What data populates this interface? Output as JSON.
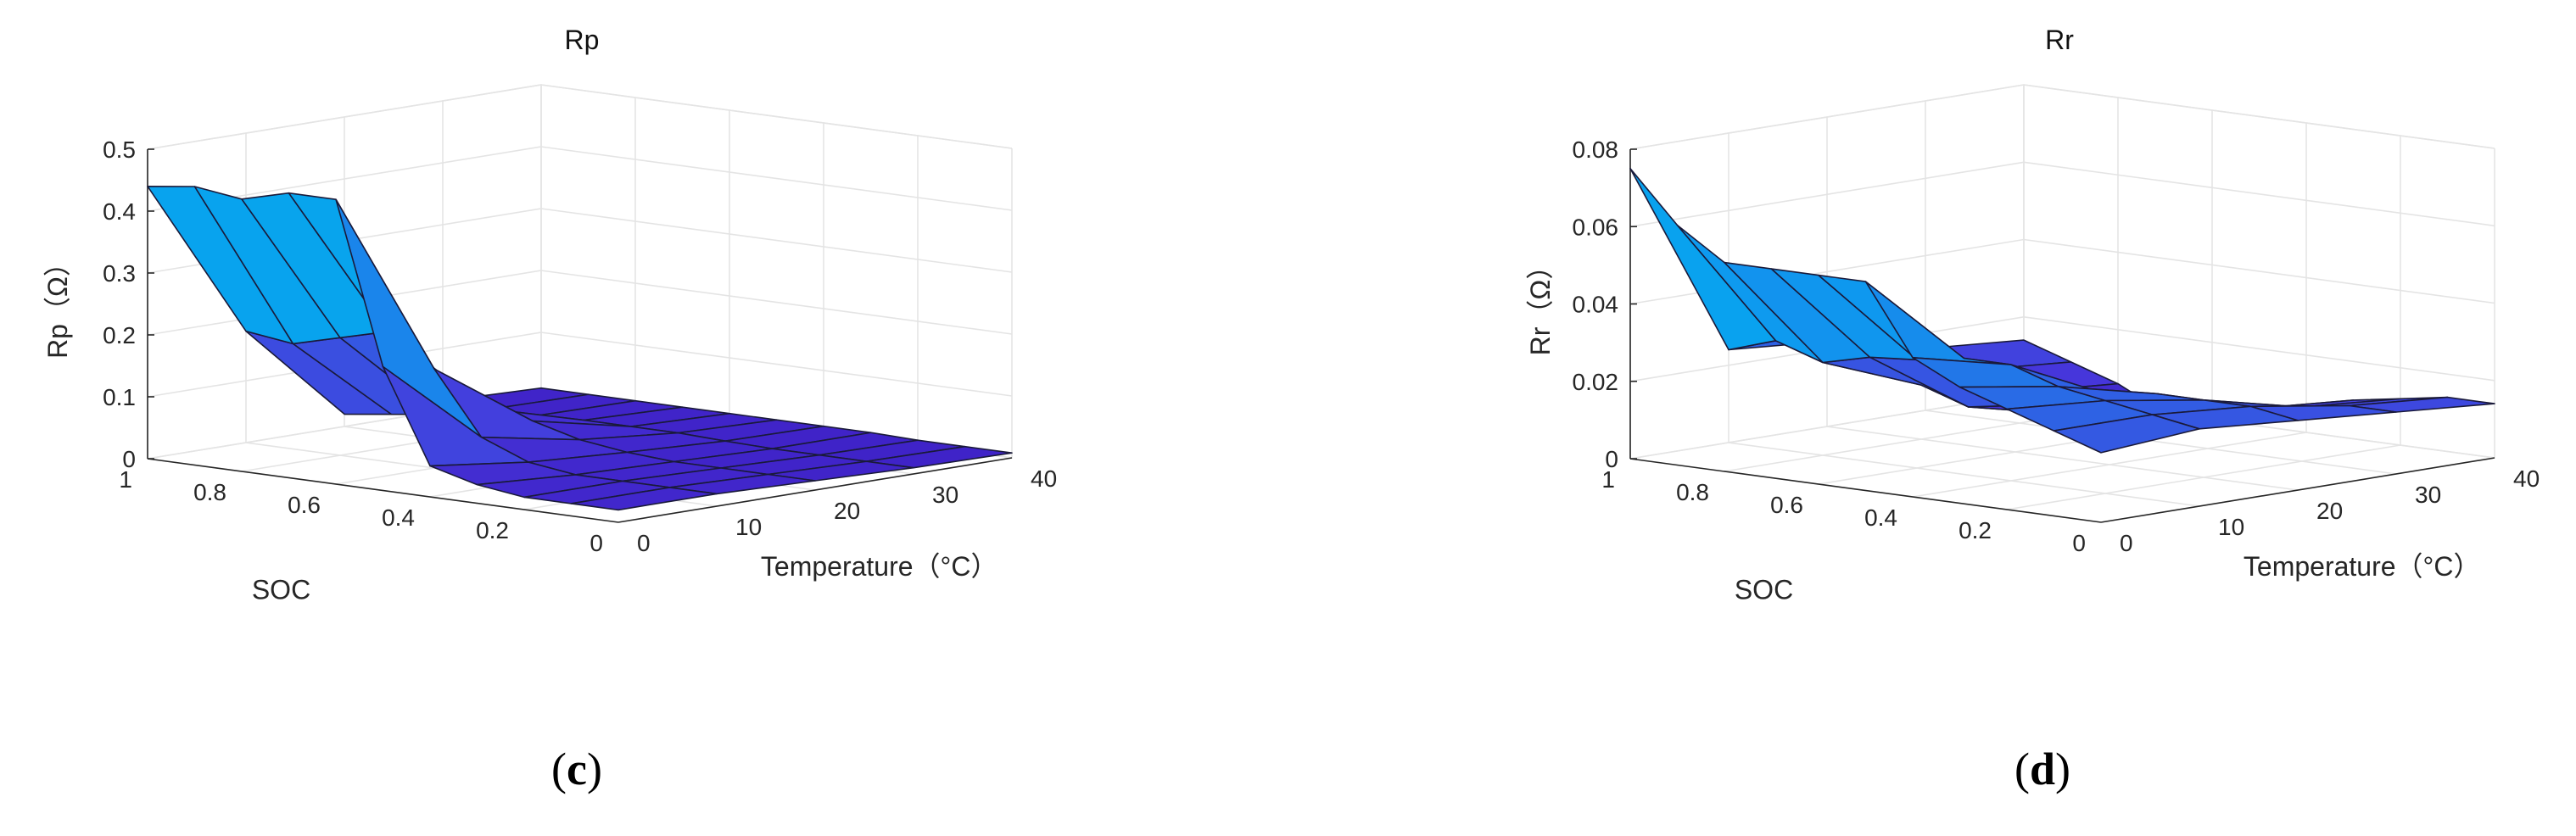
{
  "colors": {
    "high": "#00b4e4",
    "mid": "#0aa0f0",
    "surface": "#4738dc",
    "low": "#3e1fc4",
    "edge": "#1a1a3a"
  },
  "chart_data": [
    {
      "type": "surface",
      "title": "Rp",
      "panel_label": "c",
      "xlabel": "SOC",
      "ylabel": "Temperature（°C）",
      "zlabel": "Rp（Ω）",
      "soc": [
        1,
        0.9,
        0.8,
        0.7,
        0.6,
        0.5,
        0.4,
        0.3,
        0.2,
        0.1,
        0
      ],
      "temperature": [
        0,
        10,
        20,
        30,
        40
      ],
      "soc_ticks": [
        "1",
        "0.8",
        "0.6",
        "0.4",
        "0.2",
        "0"
      ],
      "temperature_ticks": [
        "0",
        "10",
        "20",
        "30",
        "40"
      ],
      "z_ticks": [
        "0",
        "0.1",
        "0.2",
        "0.3",
        "0.4",
        "0.5"
      ],
      "zlim": [
        0,
        0.5
      ],
      "grid": true,
      "z": [
        [
          0.44,
          0.45,
          0.44,
          0.46,
          0.46,
          0.2,
          0.05,
          0.03,
          0.02,
          0.02,
          0.02
        ],
        [
          0.18,
          0.17,
          0.19,
          0.21,
          0.16,
          0.06,
          0.03,
          0.02,
          0.02,
          0.02,
          0.02
        ],
        [
          0.02,
          0.03,
          0.04,
          0.06,
          0.05,
          0.03,
          0.02,
          0.015,
          0.015,
          0.015,
          0.015
        ],
        [
          0.015,
          0.012,
          0.012,
          0.015,
          0.015,
          0.015,
          0.012,
          0.01,
          0.01,
          0.01,
          0.01
        ],
        [
          0.01,
          0.01,
          0.01,
          0.01,
          0.01,
          0.01,
          0.01,
          0.01,
          0.008,
          0.008,
          0.008
        ]
      ]
    },
    {
      "type": "surface",
      "title": "Rr",
      "panel_label": "d",
      "xlabel": "SOC",
      "ylabel": "Temperature（°C）",
      "zlabel": "Rr（Ω）",
      "soc": [
        1,
        0.9,
        0.8,
        0.7,
        0.6,
        0.5,
        0.4,
        0.3,
        0.2,
        0.1,
        0
      ],
      "temperature": [
        0,
        10,
        20,
        30,
        40
      ],
      "soc_ticks": [
        "1",
        "0.8",
        "0.6",
        "0.4",
        "0.2",
        "0"
      ],
      "temperature_ticks": [
        "0",
        "10",
        "20",
        "30",
        "40"
      ],
      "z_ticks": [
        "0",
        "0.02",
        "0.04",
        "0.06",
        "0.08"
      ],
      "zlim": [
        0,
        0.08
      ],
      "grid": true,
      "z": [
        [
          0.075,
          0.062,
          0.054,
          0.054,
          0.054,
          0.054,
          0.036,
          0.03,
          0.026,
          0.022,
          0.018
        ],
        [
          0.024,
          0.028,
          0.024,
          0.027,
          0.028,
          0.03,
          0.03,
          0.026,
          0.024,
          0.022,
          0.02
        ],
        [
          0.022,
          0.018,
          0.014,
          0.01,
          0.012,
          0.016,
          0.018,
          0.02,
          0.02,
          0.02,
          0.018
        ],
        [
          0.016,
          0.012,
          0.008,
          0.004,
          0.002,
          0.006,
          0.01,
          0.012,
          0.014,
          0.016,
          0.016
        ],
        [
          0.014,
          0.01,
          0.006,
          0.0,
          0.004,
          0.002,
          0.006,
          0.01,
          0.012,
          0.014,
          0.014
        ]
      ]
    }
  ]
}
